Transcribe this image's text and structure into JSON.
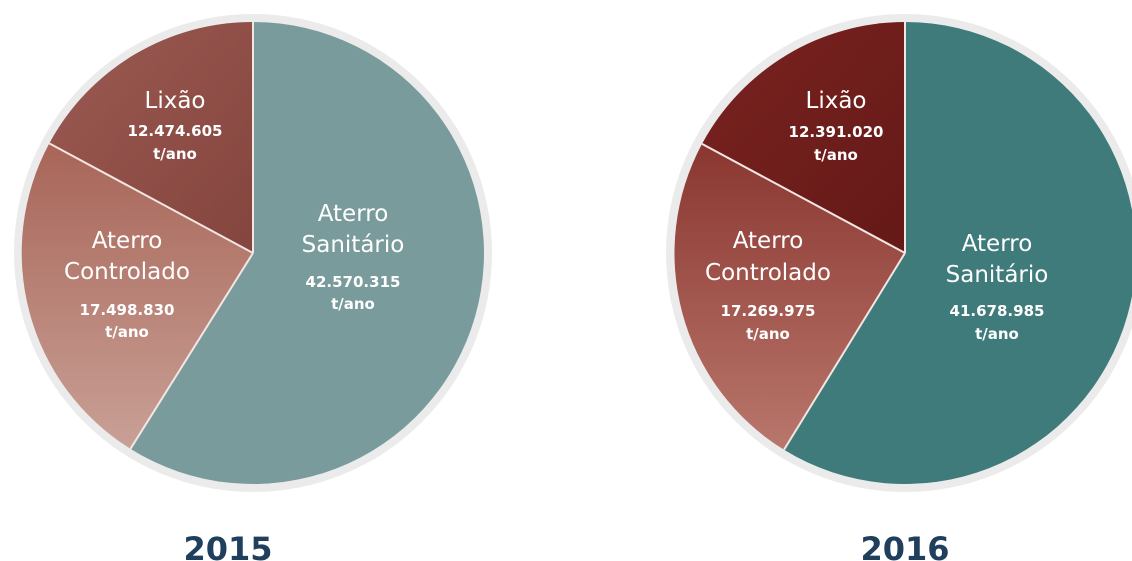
{
  "chart_data": [
    {
      "type": "pie",
      "title": "2015",
      "unit": "t/ano",
      "slices": [
        {
          "label": "Aterro Sanitário",
          "value": 42570315,
          "display": "42.570.315",
          "color": "#7a9b9c"
        },
        {
          "label": "Aterro Controlado",
          "value": 17498830,
          "display": "17.498.830",
          "color": "#b87b6e"
        },
        {
          "label": "Lixão",
          "value": 12474605,
          "display": "12.474.605",
          "color": "#8e4c45"
        }
      ]
    },
    {
      "type": "pie",
      "title": "2016",
      "unit": "t/ano",
      "slices": [
        {
          "label": "Aterro Sanitário",
          "value": 41678985,
          "display": "41.678.985",
          "color": "#3f7b7b"
        },
        {
          "label": "Aterro Controlado",
          "value": 17269975,
          "display": "17.269.975",
          "color": "#9c4a43"
        },
        {
          "label": "Lixão",
          "value": 12391020,
          "display": "12.391.020",
          "color": "#6e1d1b"
        }
      ]
    }
  ],
  "colors": {
    "ring": "#ebebeb",
    "separator": "#f3e6e3",
    "label_text": "#ffffff",
    "year_text": "#1f3f5c"
  }
}
